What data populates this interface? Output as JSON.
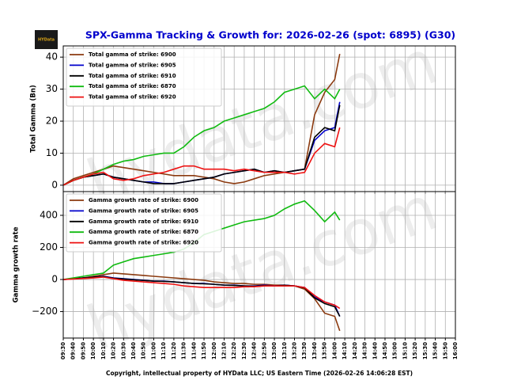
{
  "chart_data": [
    {
      "type": "line",
      "title": "SPX-Gamma Tracking & Growth for: 2026-02-26 (spot: 6895) (G30)",
      "logo": "HYData",
      "watermark": "hydata.com",
      "ylabel": "Total Gamma (Bn)",
      "ylim": [
        -2,
        43.5
      ],
      "yticks": [
        0,
        10,
        20,
        30,
        40
      ],
      "xlim": [
        "09:30",
        "16:00"
      ],
      "grid": true,
      "legend": "upper left",
      "x": [
        "09:30",
        "09:40",
        "09:50",
        "10:00",
        "10:10",
        "10:20",
        "10:30",
        "10:40",
        "10:50",
        "11:00",
        "11:10",
        "11:20",
        "11:30",
        "11:40",
        "11:50",
        "12:00",
        "12:10",
        "12:20",
        "12:30",
        "12:40",
        "12:50",
        "13:00",
        "13:10",
        "13:20",
        "13:30",
        "13:40",
        "13:50",
        "14:00",
        "14:05"
      ],
      "series": [
        {
          "name": "Total gamma of strike: 6900",
          "color": "#8b3a0f",
          "values": [
            0,
            2,
            3,
            4,
            5,
            6,
            5.5,
            5,
            4.5,
            4,
            3.5,
            3,
            3,
            3,
            2.5,
            2,
            1,
            0.5,
            1,
            2,
            3,
            3.5,
            4,
            4.5,
            5,
            22,
            29,
            33,
            41
          ]
        },
        {
          "name": "Total gamma of strike: 6905",
          "color": "#0000cc",
          "values": [
            0,
            1.5,
            2.5,
            3,
            3.5,
            2.5,
            2,
            1.5,
            1,
            1,
            0.5,
            0.5,
            1,
            1.5,
            2,
            2.5,
            3.5,
            4,
            4.5,
            5,
            4,
            4.5,
            4,
            4.5,
            5,
            14,
            17,
            18,
            26
          ]
        },
        {
          "name": "Total gamma of strike: 6910",
          "color": "#000000",
          "values": [
            0,
            1.5,
            2.5,
            3,
            3.5,
            2.5,
            2,
            1.5,
            1,
            0.5,
            0.5,
            0.5,
            1,
            1.5,
            2,
            2.5,
            3.5,
            4,
            4.5,
            5,
            4,
            4.5,
            4,
            4.5,
            5,
            15,
            18,
            17,
            25
          ]
        },
        {
          "name": "Total gamma of strike: 6870",
          "color": "#11bb11",
          "values": [
            0,
            1.5,
            2.5,
            3.5,
            5,
            6.5,
            7.5,
            8,
            9,
            9.5,
            10,
            10,
            12,
            15,
            17,
            18,
            20,
            21,
            22,
            23,
            24,
            26,
            29,
            30,
            31,
            27,
            30,
            27,
            30
          ]
        },
        {
          "name": "Total gamma of strike: 6920",
          "color": "#ee1111",
          "values": [
            0,
            1.5,
            2.5,
            3.5,
            4,
            2,
            1.5,
            2,
            3,
            3.5,
            4,
            5,
            6,
            6,
            5,
            5,
            5,
            4.5,
            5,
            4.5,
            4,
            4,
            4,
            3.5,
            4,
            10,
            13,
            12,
            18
          ]
        }
      ]
    },
    {
      "type": "line",
      "ylabel": "Gamma growth rate",
      "xlabel": "Copyright, intellectual property of HYData LLC; US Eastern Time (2026-02-26 14:06:28 EST)",
      "watermark": "hydata.com",
      "ylim": [
        -365,
        548
      ],
      "yticks": [
        {
          "value": -200,
          "label": "−200"
        },
        0,
        200,
        400
      ],
      "xlim": [
        "09:30",
        "16:00"
      ],
      "grid": true,
      "legend": "upper left",
      "xticks": [
        "09:30",
        "09:40",
        "09:50",
        "10:00",
        "10:10",
        "10:20",
        "10:30",
        "10:40",
        "10:50",
        "11:00",
        "11:10",
        "11:20",
        "11:30",
        "11:40",
        "11:50",
        "12:00",
        "12:10",
        "12:20",
        "12:30",
        "12:40",
        "12:50",
        "13:00",
        "13:10",
        "13:20",
        "13:30",
        "13:40",
        "13:50",
        "14:00",
        "14:10",
        "14:20",
        "14:30",
        "14:40",
        "14:50",
        "15:00",
        "15:10",
        "15:20",
        "15:30",
        "15:40",
        "15:50",
        "16:00"
      ],
      "x": [
        "09:30",
        "09:40",
        "09:50",
        "10:00",
        "10:10",
        "10:20",
        "10:30",
        "10:40",
        "10:50",
        "11:00",
        "11:10",
        "11:20",
        "11:30",
        "11:40",
        "11:50",
        "12:00",
        "12:10",
        "12:20",
        "12:30",
        "12:40",
        "12:50",
        "13:00",
        "13:10",
        "13:20",
        "13:30",
        "13:40",
        "13:50",
        "14:00",
        "14:05"
      ],
      "series": [
        {
          "name": "Gamma growth rate of strike: 6900",
          "color": "#8b3a0f",
          "values": [
            0,
            5,
            10,
            20,
            30,
            40,
            35,
            30,
            25,
            20,
            15,
            10,
            5,
            0,
            -5,
            -15,
            -20,
            -25,
            -25,
            -30,
            -30,
            -35,
            -35,
            -40,
            -60,
            -120,
            -210,
            -230,
            -320
          ]
        },
        {
          "name": "Gamma growth rate of strike: 6905",
          "color": "#0000cc",
          "values": [
            0,
            5,
            10,
            15,
            20,
            10,
            5,
            0,
            -5,
            -10,
            -10,
            -15,
            -20,
            -25,
            -25,
            -30,
            -35,
            -35,
            -40,
            -40,
            -35,
            -40,
            -35,
            -40,
            -50,
            -110,
            -140,
            -160,
            -230
          ]
        },
        {
          "name": "Gamma growth rate of strike: 6910",
          "color": "#000000",
          "values": [
            0,
            5,
            10,
            15,
            18,
            8,
            3,
            -2,
            -6,
            -10,
            -12,
            -15,
            -20,
            -25,
            -27,
            -30,
            -35,
            -37,
            -40,
            -42,
            -38,
            -40,
            -36,
            -40,
            -52,
            -115,
            -150,
            -170,
            -230
          ]
        },
        {
          "name": "Gamma growth rate of strike: 6870",
          "color": "#11bb11",
          "values": [
            0,
            10,
            20,
            30,
            40,
            90,
            110,
            130,
            140,
            150,
            160,
            170,
            190,
            230,
            280,
            300,
            320,
            340,
            360,
            370,
            380,
            400,
            440,
            470,
            490,
            430,
            360,
            420,
            370
          ]
        },
        {
          "name": "Gamma growth rate of strike: 6920",
          "color": "#ee1111",
          "values": [
            0,
            3,
            6,
            10,
            15,
            5,
            -5,
            -10,
            -15,
            -20,
            -25,
            -30,
            -40,
            -45,
            -50,
            -50,
            -50,
            -50,
            -45,
            -45,
            -40,
            -40,
            -40,
            -40,
            -50,
            -100,
            -140,
            -160,
            -180
          ]
        }
      ]
    }
  ]
}
